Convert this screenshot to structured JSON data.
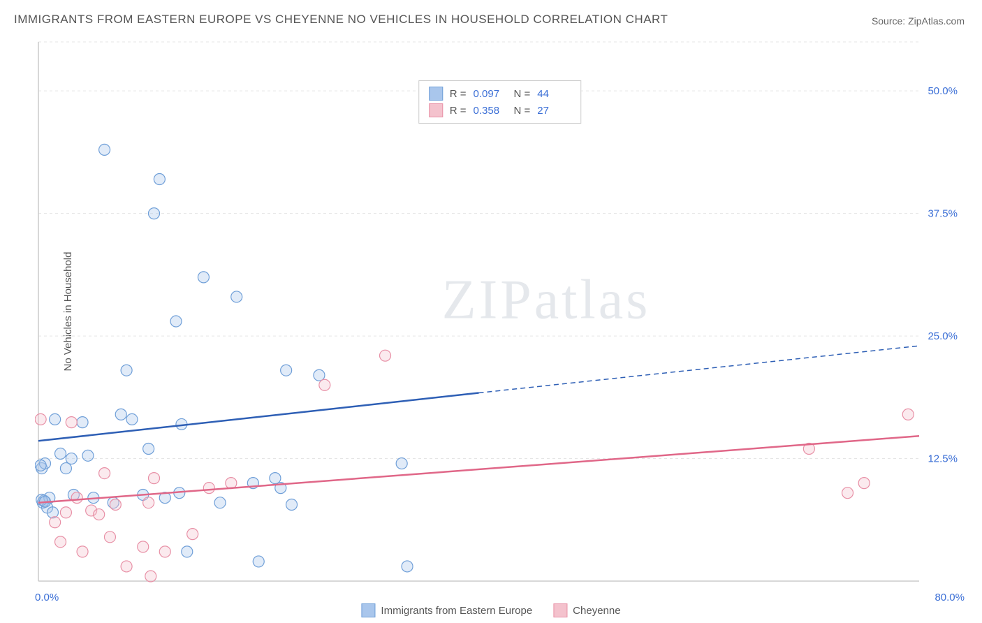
{
  "title": "IMMIGRANTS FROM EASTERN EUROPE VS CHEYENNE NO VEHICLES IN HOUSEHOLD CORRELATION CHART",
  "source_prefix": "Source: ",
  "source_name": "ZipAtlas.com",
  "ylabel": "No Vehicles in Household",
  "watermark": "ZIPatlas",
  "chart": {
    "type": "scatter",
    "xlim": [
      0,
      80
    ],
    "ylim": [
      0,
      55
    ],
    "x_min_label": "0.0%",
    "x_max_label": "80.0%",
    "y_ticks": [
      12.5,
      25.0,
      37.5,
      50.0
    ],
    "y_tick_labels": [
      "12.5%",
      "25.0%",
      "37.5%",
      "50.0%"
    ],
    "grid_color": "#e5e5e5",
    "grid_dash": "4,4",
    "axis_color": "#cccccc",
    "background": "#ffffff",
    "marker_radius": 8,
    "marker_stroke_width": 1.2,
    "marker_fill_opacity": 0.35,
    "series": [
      {
        "name": "Immigrants from Eastern Europe",
        "color_fill": "#a9c6ec",
        "color_stroke": "#6f9fd8",
        "trend_color": "#2e5fb5",
        "trend_width": 2.5,
        "R": "0.097",
        "N": "44",
        "trend_solid_x": [
          0,
          40
        ],
        "trend_solid_y": [
          14.3,
          19.2
        ],
        "trend_dash_x": [
          40,
          80
        ],
        "trend_dash_y": [
          19.2,
          24.0
        ],
        "points": [
          [
            0.4,
            8.0
          ],
          [
            0.5,
            8.2
          ],
          [
            0.8,
            7.5
          ],
          [
            0.3,
            11.5
          ],
          [
            0.6,
            12.0
          ],
          [
            0.2,
            11.8
          ],
          [
            1.0,
            8.5
          ],
          [
            1.5,
            16.5
          ],
          [
            1.3,
            7.0
          ],
          [
            2.0,
            13.0
          ],
          [
            2.5,
            11.5
          ],
          [
            3.2,
            8.8
          ],
          [
            3.0,
            12.5
          ],
          [
            4.5,
            12.8
          ],
          [
            4.0,
            16.2
          ],
          [
            5.0,
            8.5
          ],
          [
            6.0,
            44.0
          ],
          [
            6.8,
            8.0
          ],
          [
            7.5,
            17.0
          ],
          [
            8.5,
            16.5
          ],
          [
            8.0,
            21.5
          ],
          [
            9.5,
            8.8
          ],
          [
            10.0,
            13.5
          ],
          [
            10.5,
            37.5
          ],
          [
            11.5,
            8.5
          ],
          [
            11.0,
            41.0
          ],
          [
            12.5,
            26.5
          ],
          [
            13.5,
            3.0
          ],
          [
            12.8,
            9.0
          ],
          [
            13.0,
            16.0
          ],
          [
            15.0,
            31.0
          ],
          [
            16.5,
            8.0
          ],
          [
            18.0,
            29.0
          ],
          [
            19.5,
            10.0
          ],
          [
            20.0,
            2.0
          ],
          [
            21.5,
            10.5
          ],
          [
            22.0,
            9.5
          ],
          [
            22.5,
            21.5
          ],
          [
            25.5,
            21.0
          ],
          [
            23.0,
            7.8
          ],
          [
            33.0,
            12.0
          ],
          [
            33.5,
            1.5
          ],
          [
            0.3,
            8.3
          ],
          [
            0.6,
            8.1
          ]
        ]
      },
      {
        "name": "Cheyenne",
        "color_fill": "#f4c2cd",
        "color_stroke": "#e890a6",
        "trend_color": "#e06788",
        "trend_width": 2.5,
        "R": "0.358",
        "N": "27",
        "trend_solid_x": [
          0,
          80
        ],
        "trend_solid_y": [
          8.0,
          14.8
        ],
        "points": [
          [
            0.2,
            16.5
          ],
          [
            1.5,
            6.0
          ],
          [
            2.0,
            4.0
          ],
          [
            2.5,
            7.0
          ],
          [
            3.0,
            16.2
          ],
          [
            3.5,
            8.5
          ],
          [
            4.0,
            3.0
          ],
          [
            4.8,
            7.2
          ],
          [
            5.5,
            6.8
          ],
          [
            6.0,
            11.0
          ],
          [
            6.5,
            4.5
          ],
          [
            7.0,
            7.8
          ],
          [
            8.0,
            1.5
          ],
          [
            9.5,
            3.5
          ],
          [
            10.0,
            8.0
          ],
          [
            10.5,
            10.5
          ],
          [
            10.2,
            0.5
          ],
          [
            11.5,
            3.0
          ],
          [
            14.0,
            4.8
          ],
          [
            15.5,
            9.5
          ],
          [
            17.5,
            10.0
          ],
          [
            26.0,
            20.0
          ],
          [
            31.5,
            23.0
          ],
          [
            70.0,
            13.5
          ],
          [
            73.5,
            9.0
          ],
          [
            75.0,
            10.0
          ],
          [
            79.0,
            17.0
          ]
        ]
      }
    ]
  },
  "legend": {
    "series1": "Immigrants from Eastern Europe",
    "series2": "Cheyenne"
  },
  "top_legend": {
    "r_label": "R =",
    "n_label": "N ="
  },
  "axis_label_color": "#3b6fd6",
  "y_tick_color": "#3b6fd6"
}
